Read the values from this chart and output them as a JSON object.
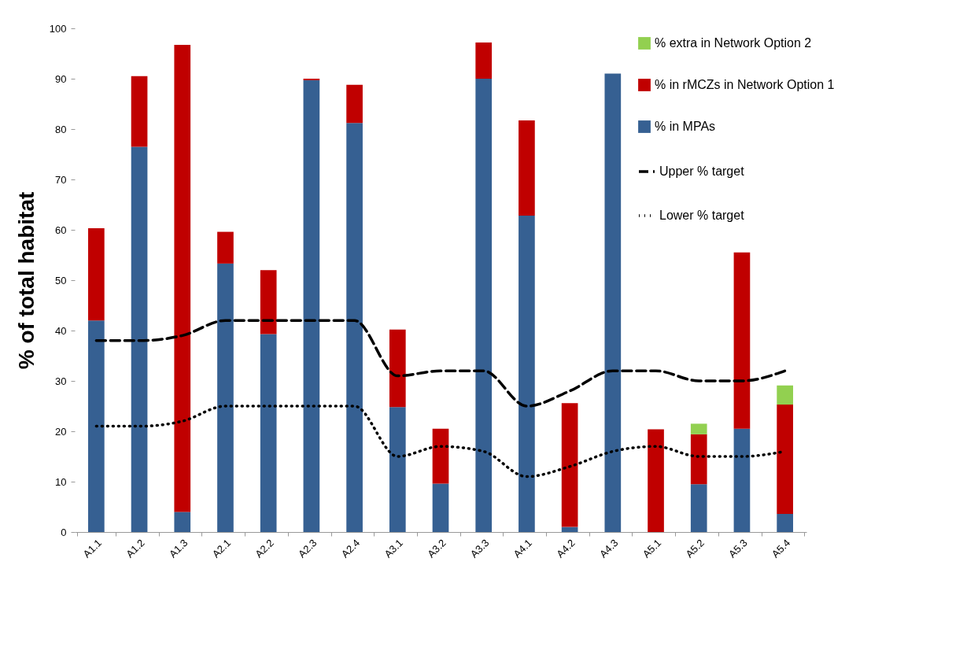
{
  "chart_data": {
    "type": "bar",
    "stacked": true,
    "ylabel": "% of total habitat",
    "categories": [
      "A1.1",
      "A1.2",
      "A1.3",
      "A2.1",
      "A2.2",
      "A2.3",
      "A2.4",
      "A3.1",
      "A3.2",
      "A3.3",
      "A4.1",
      "A4.2",
      "A4.3",
      "A5.1",
      "A5.2",
      "A5.3",
      "A5.4"
    ],
    "series": [
      {
        "name": "% in MPAs",
        "color": "#366092",
        "values": [
          42,
          76.5,
          4,
          53.3,
          39.3,
          89.7,
          81.2,
          24.8,
          9.6,
          90,
          62.8,
          1,
          91,
          0,
          9.5,
          20.5,
          3.6
        ]
      },
      {
        "name": "% in rMCZs in Network Option 1",
        "color": "#c00000",
        "values": [
          18.3,
          14,
          92.7,
          6.3,
          12.7,
          0.3,
          7.6,
          15.4,
          10.9,
          7.2,
          18.9,
          24.6,
          0,
          20.4,
          9.9,
          35,
          21.7
        ]
      },
      {
        "name": "% extra in Network Option 2",
        "color": "#92d050",
        "values": [
          0,
          0,
          0,
          0,
          0,
          0,
          0,
          0,
          0,
          0,
          0,
          0,
          0,
          0,
          2.1,
          0,
          3.8
        ]
      },
      {
        "name": "Upper % target",
        "type": "line",
        "line_style": "dashed",
        "color": "#000000",
        "values": [
          38,
          38,
          39,
          42,
          42,
          42,
          42,
          31,
          32,
          32,
          25,
          28,
          32,
          32,
          30,
          30,
          32
        ]
      },
      {
        "name": "Lower % target",
        "type": "line",
        "line_style": "dotted",
        "color": "#000000",
        "values": [
          21,
          21,
          22,
          25,
          25,
          25,
          25,
          15,
          17,
          16,
          11,
          13,
          16,
          17,
          15,
          15,
          16
        ]
      }
    ],
    "ylim": [
      0,
      100
    ],
    "yticks": [
      0,
      10,
      20,
      30,
      40,
      50,
      60,
      70,
      80,
      90,
      100
    ],
    "grid": false,
    "legend": "top right",
    "marker": "none"
  }
}
